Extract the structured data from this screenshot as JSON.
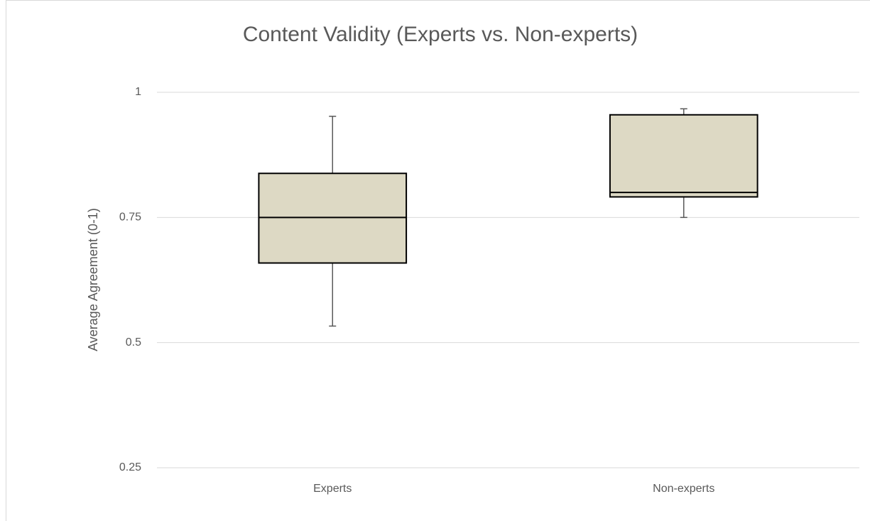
{
  "chart_data": {
    "type": "box",
    "title": "Content Validity (Experts vs. Non-experts)",
    "y_label": "Average Agreement (0-1)",
    "categories": [
      "Experts",
      "Non-experts"
    ],
    "boxes": [
      {
        "min": 0.533,
        "q1": 0.659,
        "median": 0.75,
        "q3": 0.838,
        "max": 0.952
      },
      {
        "min": 0.75,
        "q1": 0.791,
        "median": 0.8,
        "q3": 0.955,
        "max": 0.967
      }
    ],
    "color": "#ddd9c4",
    "ylim": [
      0.25,
      1
    ],
    "yticks": [
      0.25,
      0.5,
      0.75,
      1
    ],
    "grid": true
  }
}
